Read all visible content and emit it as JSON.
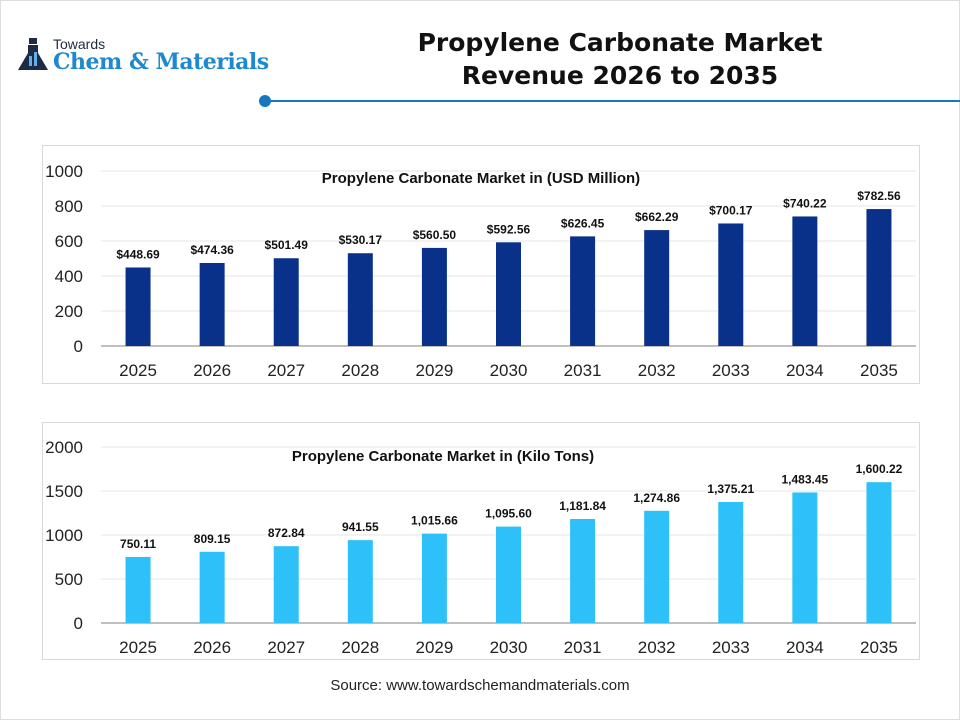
{
  "header": {
    "logo_top": "Towards",
    "logo_main": "Chem & Materials",
    "title_line1": "Propylene Carbonate Market",
    "title_line2": "Revenue 2026 to 2035"
  },
  "chart_data": [
    {
      "type": "bar",
      "title": "Propylene Carbonate Market in (USD Million)",
      "categories": [
        "2025",
        "2026",
        "2027",
        "2028",
        "2029",
        "2030",
        "2031",
        "2032",
        "2033",
        "2034",
        "2035"
      ],
      "values": [
        448.69,
        474.36,
        501.49,
        530.17,
        560.5,
        592.56,
        626.45,
        662.29,
        700.17,
        740.22,
        782.56
      ],
      "data_labels": [
        "$448.69",
        "$474.36",
        "$501.49",
        "$530.17",
        "$560.50",
        "$592.56",
        "$626.45",
        "$662.29",
        "$700.17",
        "$740.22",
        "$782.56"
      ],
      "yticks": [
        "0",
        "200",
        "400",
        "600",
        "800",
        "1000"
      ],
      "ylim": [
        0,
        1000
      ],
      "grid": true,
      "color": "#0a3189"
    },
    {
      "type": "bar",
      "title": "Propylene Carbonate Market in (Kilo Tons)",
      "categories": [
        "2025",
        "2026",
        "2027",
        "2028",
        "2029",
        "2030",
        "2031",
        "2032",
        "2033",
        "2034",
        "2035"
      ],
      "values": [
        750.11,
        809.15,
        872.84,
        941.55,
        1015.66,
        1095.6,
        1181.84,
        1274.86,
        1375.21,
        1483.45,
        1600.22
      ],
      "data_labels": [
        "750.11",
        "809.15",
        "872.84",
        "941.55",
        "1,015.66",
        "1,095.60",
        "1,181.84",
        "1,274.86",
        "1,375.21",
        "1,483.45",
        "1,600.22"
      ],
      "yticks": [
        "0",
        "500",
        "1000",
        "1500",
        "2000"
      ],
      "ylim": [
        0,
        2000
      ],
      "grid": true,
      "color": "#2ec0f9"
    }
  ],
  "source": "Source: www.towardschemandmaterials.com"
}
